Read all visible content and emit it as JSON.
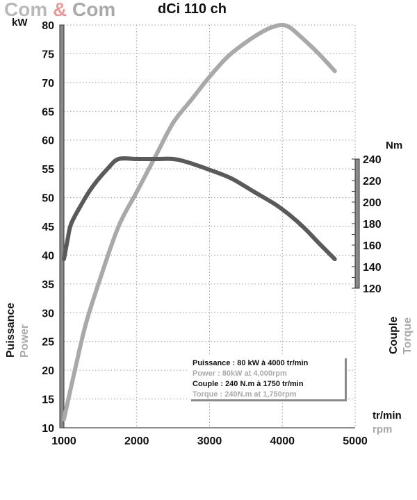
{
  "brand": {
    "part1": "Com",
    "amp": "&",
    "part2": "Com"
  },
  "title": "dCi 110 ch",
  "colors": {
    "power": "#a9a9a9",
    "torque": "#5a5a5a",
    "grid": "#9a9a9a",
    "axis": "#555555",
    "dark_text": "#111111",
    "light_text": "#a9a9a9"
  },
  "chart_data": {
    "type": "line",
    "title": "dCi 110 ch",
    "x": {
      "labels": [
        "tr/min",
        "rpm"
      ],
      "range": [
        1000,
        5000
      ],
      "ticks": [
        1000,
        2000,
        3000,
        4000,
        5000
      ],
      "tick_labels": [
        "1000",
        "2000",
        "3000",
        "4000",
        "5000"
      ]
    },
    "y_left": {
      "unit": "kW",
      "labels": [
        "Puissance",
        "Power"
      ],
      "range": [
        10,
        80
      ],
      "ticks": [
        10,
        15,
        20,
        25,
        30,
        35,
        40,
        45,
        50,
        55,
        60,
        65,
        70,
        75,
        80
      ],
      "tick_labels": [
        "10",
        "15",
        "20",
        "25",
        "30",
        "35",
        "40",
        "45",
        "50",
        "55",
        "60",
        "65",
        "70",
        "75",
        "80"
      ]
    },
    "y_right": {
      "unit": "Nm",
      "labels": [
        "Couple",
        "Torque"
      ],
      "range": [
        120,
        240
      ],
      "ticks": [
        120,
        140,
        160,
        180,
        200,
        220,
        240
      ],
      "tick_labels": [
        "120",
        "140",
        "160",
        "180",
        "200",
        "220",
        "240"
      ]
    },
    "grid": true,
    "series": [
      {
        "axis": "left",
        "color": "#a9a9a9",
        "x": [
          1000,
          1150,
          1300,
          1500,
          1750,
          2000,
          2250,
          2500,
          2750,
          3000,
          3250,
          3500,
          3750,
          3900,
          4000,
          4100,
          4250,
          4500,
          4720
        ],
        "y": [
          11.5,
          20,
          28,
          36,
          45,
          51,
          57,
          63,
          67,
          71,
          74.5,
          77,
          79,
          79.8,
          80,
          79.6,
          78,
          75,
          72
        ]
      },
      {
        "axis": "right",
        "color": "#5a5a5a",
        "x": [
          1000,
          1050,
          1100,
          1250,
          1400,
          1600,
          1750,
          2000,
          2250,
          2500,
          2700,
          3000,
          3300,
          3600,
          3900,
          4100,
          4300,
          4500,
          4720
        ],
        "y": [
          147,
          165,
          180,
          199,
          215,
          231,
          240,
          240,
          240,
          240,
          237,
          230,
          222,
          210,
          198,
          188,
          176,
          162,
          147
        ]
      }
    ],
    "legend": {
      "position": "bottom-right",
      "entries": [
        {
          "text": "Puissance : 80 kW à 4000 tr/min",
          "tone": "dark"
        },
        {
          "text": "Power : 80kW at 4,000rpm",
          "tone": "light"
        },
        {
          "text": "Couple : 240 N.m à 1750 tr/min",
          "tone": "dark"
        },
        {
          "text": "Torque : 240N.m at 1,750rpm",
          "tone": "light"
        }
      ]
    }
  }
}
